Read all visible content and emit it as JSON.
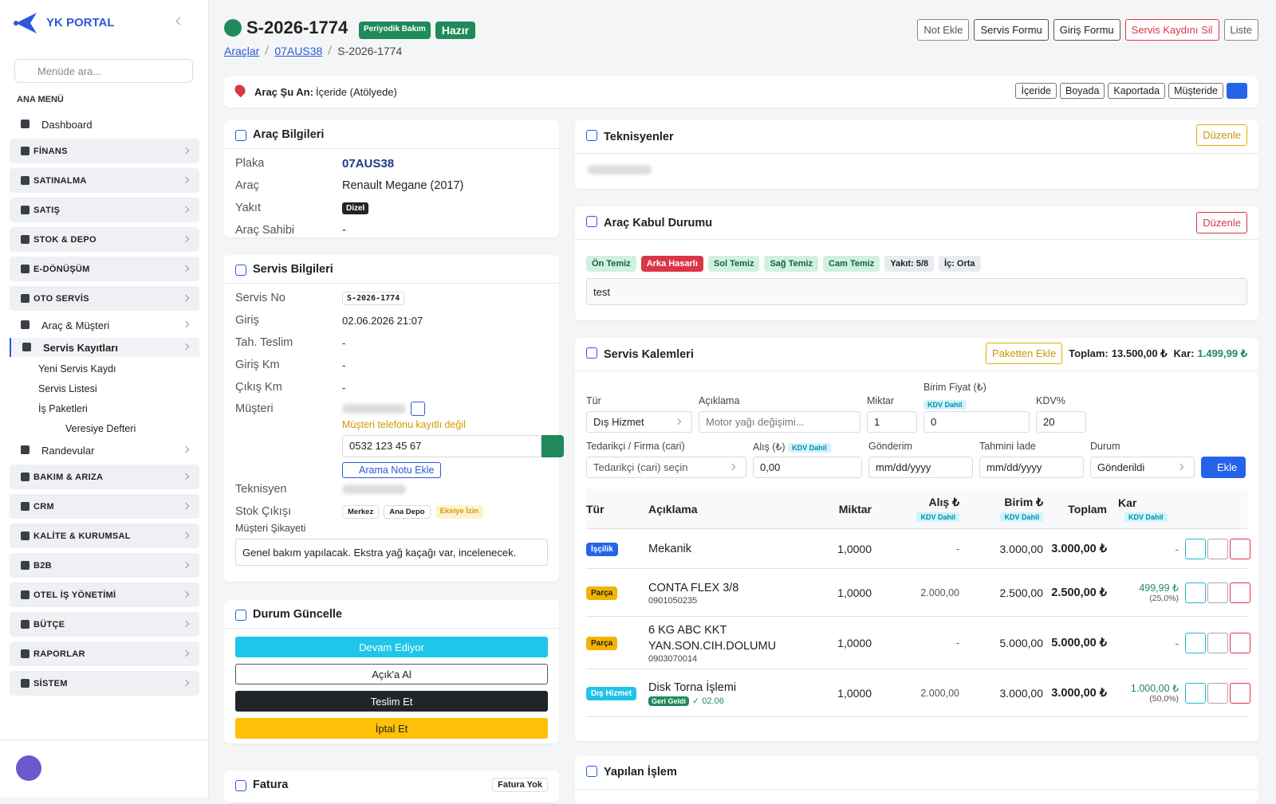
{
  "sidebar": {
    "brand": "YK PORTAL",
    "search_placeholder": "Menüde ara...",
    "section": "ANA MENÜ",
    "dashboard": "Dashboard",
    "groups_before": [
      "FİNANS",
      "SATINALMA",
      "SATIŞ",
      "STOK & DEPO",
      "E-DÖNÜŞÜM"
    ],
    "open_group": "OTO SERVİS",
    "open_items": [
      "Araç & Müşteri",
      "Servis Kayıtları"
    ],
    "sub_items": [
      "Yeni Servis Kaydı",
      "Servis Listesi",
      "İş Paketleri",
      "Veresiye Defteri"
    ],
    "after_item": "Randevular",
    "groups_after": [
      "BAKIM & ARIZA",
      "CRM",
      "KALİTE & KURUMSAL",
      "B2B",
      "OTEL İŞ YÖNETİMİ",
      "BÜTÇE",
      "RAPORLAR",
      "SİSTEM"
    ]
  },
  "header": {
    "title": "S-2026-1774",
    "badges": [
      "Periyodik Bakım",
      "Hazır"
    ],
    "breadcrumb": [
      "Araçlar",
      "07AUS38",
      "S-2026-1774"
    ],
    "buttons": [
      "Not Ekle",
      "Servis Formu",
      "Giriş Formu",
      "Servis Kaydını Sil",
      "Liste"
    ]
  },
  "location": {
    "label": "Araç Şu An:",
    "value": "İçeride (Atölyede)",
    "options": [
      "İçeride",
      "Boyada",
      "Kaportada",
      "Müşteride"
    ]
  },
  "vehicle": {
    "title": "Araç Bilgileri",
    "rows": [
      [
        "Plaka",
        "07AUS38"
      ],
      [
        "Araç",
        "Renault Megane (2017)"
      ],
      [
        "Yakıt",
        "Dizel"
      ],
      [
        "Araç Sahibi",
        "-"
      ]
    ]
  },
  "service": {
    "title": "Servis Bilgileri",
    "rows": [
      [
        "Servis No",
        "S-2026-1774"
      ],
      [
        "Giriş",
        "02.06.2026 21:07"
      ],
      [
        "Tah. Teslim",
        "-"
      ],
      [
        "Giriş Km",
        "-"
      ],
      [
        "Çıkış Km",
        "-"
      ]
    ],
    "customer_label": "Müşteri",
    "phone_warning": "Müşteri telefonu kayıtlı değil",
    "phone": "0532 123 45 67",
    "call_note": "Arama Notu Ekle",
    "technician_label": "Teknisyen",
    "stock_label": "Stok Çıkışı",
    "stock_tags": [
      "Merkez",
      "Ana Depo",
      "Eksiye İzin"
    ],
    "complaint_label": "Müşteri Şikayeti",
    "complaint": "Genel bakım yapılacak. Ekstra yağ kaçağı var, incelenecek."
  },
  "status": {
    "title": "Durum Güncelle",
    "buttons": [
      "Devam Ediyor",
      "Açık'a Al",
      "Teslim Et",
      "İptal Et"
    ]
  },
  "invoice": {
    "title": "Fatura",
    "badge": "Fatura Yok"
  },
  "technicians": {
    "title": "Teknisyenler",
    "edit": "Düzenle"
  },
  "acceptance": {
    "title": "Araç Kabul Durumu",
    "edit": "Düzenle",
    "chips": [
      "Ön Temiz",
      "Arka Hasarlı",
      "Sol Temiz",
      "Sağ Temiz",
      "Cam Temiz",
      "Yakıt: 5/8",
      "İç: Orta"
    ],
    "note": "test"
  },
  "items": {
    "title": "Servis Kalemleri",
    "package_button": "Paketten Ekle",
    "total_label": "Toplam:",
    "total": "13.500,00 ₺",
    "profit_label": "Kar:",
    "profit": "1.499,99 ₺",
    "form": {
      "type_label": "Tür",
      "type": "Dış Hizmet",
      "desc_label": "Açıklama",
      "desc_placeholder": "Motor yağı değişimi...",
      "qty_label": "Miktar",
      "qty": "1",
      "price_label": "Birim Fiyat (₺)",
      "vat_included": "KDV Dahil",
      "price": "0",
      "vat_label": "KDV%",
      "vat": "20",
      "supplier_label": "Tedarikçi / Firma (cari)",
      "supplier_placeholder": "Tedarikçi (cari) seçin",
      "purchase_label": "Alış (₺)",
      "purchase": "0,00",
      "sent_label": "Gönderim",
      "sent": "mm/dd/yyyy",
      "return_label": "Tahmini İade",
      "return": "mm/dd/yyyy",
      "state_label": "Durum",
      "state": "Gönderildi",
      "add": "Ekle"
    },
    "columns": [
      "Tür",
      "Açıklama",
      "Miktar",
      "Alış ₺",
      "Birim ₺",
      "Toplam",
      "Kar"
    ],
    "column_note": "KDV Dahil",
    "rows": [
      {
        "type": "İşçilik",
        "badge_color": "#2563eb",
        "description": "Mekanik",
        "qty": "1,0000",
        "purchase": "-",
        "unit": "3.000,00",
        "total": "3.000,00 ₺",
        "profit": "-"
      },
      {
        "type": "Parça",
        "badge_color": "#f5b301",
        "description": "CONTA FLEX 3/8",
        "code": "0901050235",
        "qty": "1,0000",
        "purchase": "2.000,00",
        "unit": "2.500,00",
        "total": "2.500,00 ₺",
        "profit": "499,99 ₺",
        "profit_pct": "(25,0%)"
      },
      {
        "type": "Parça",
        "badge_color": "#f5b301",
        "description": "6 KG ABC KKT YAN.SON.CIH.DOLUMU",
        "code": "0903070014",
        "qty": "1,0000",
        "purchase": "-",
        "unit": "5.000,00",
        "total": "5.000,00 ₺",
        "profit": "-"
      },
      {
        "type": "Dış Hizmet",
        "badge_color": "#22c3e6",
        "description": "Disk Torna İşlemi",
        "returned": "Geri Geldi",
        "date": "✓ 02.06",
        "qty": "1,0000",
        "purchase": "2.000,00",
        "unit": "3.000,00",
        "total": "3.000,00 ₺",
        "profit": "1.000,00 ₺",
        "profit_pct": "(50,0%)"
      }
    ]
  },
  "work": {
    "title": "Yapılan İşlem"
  }
}
